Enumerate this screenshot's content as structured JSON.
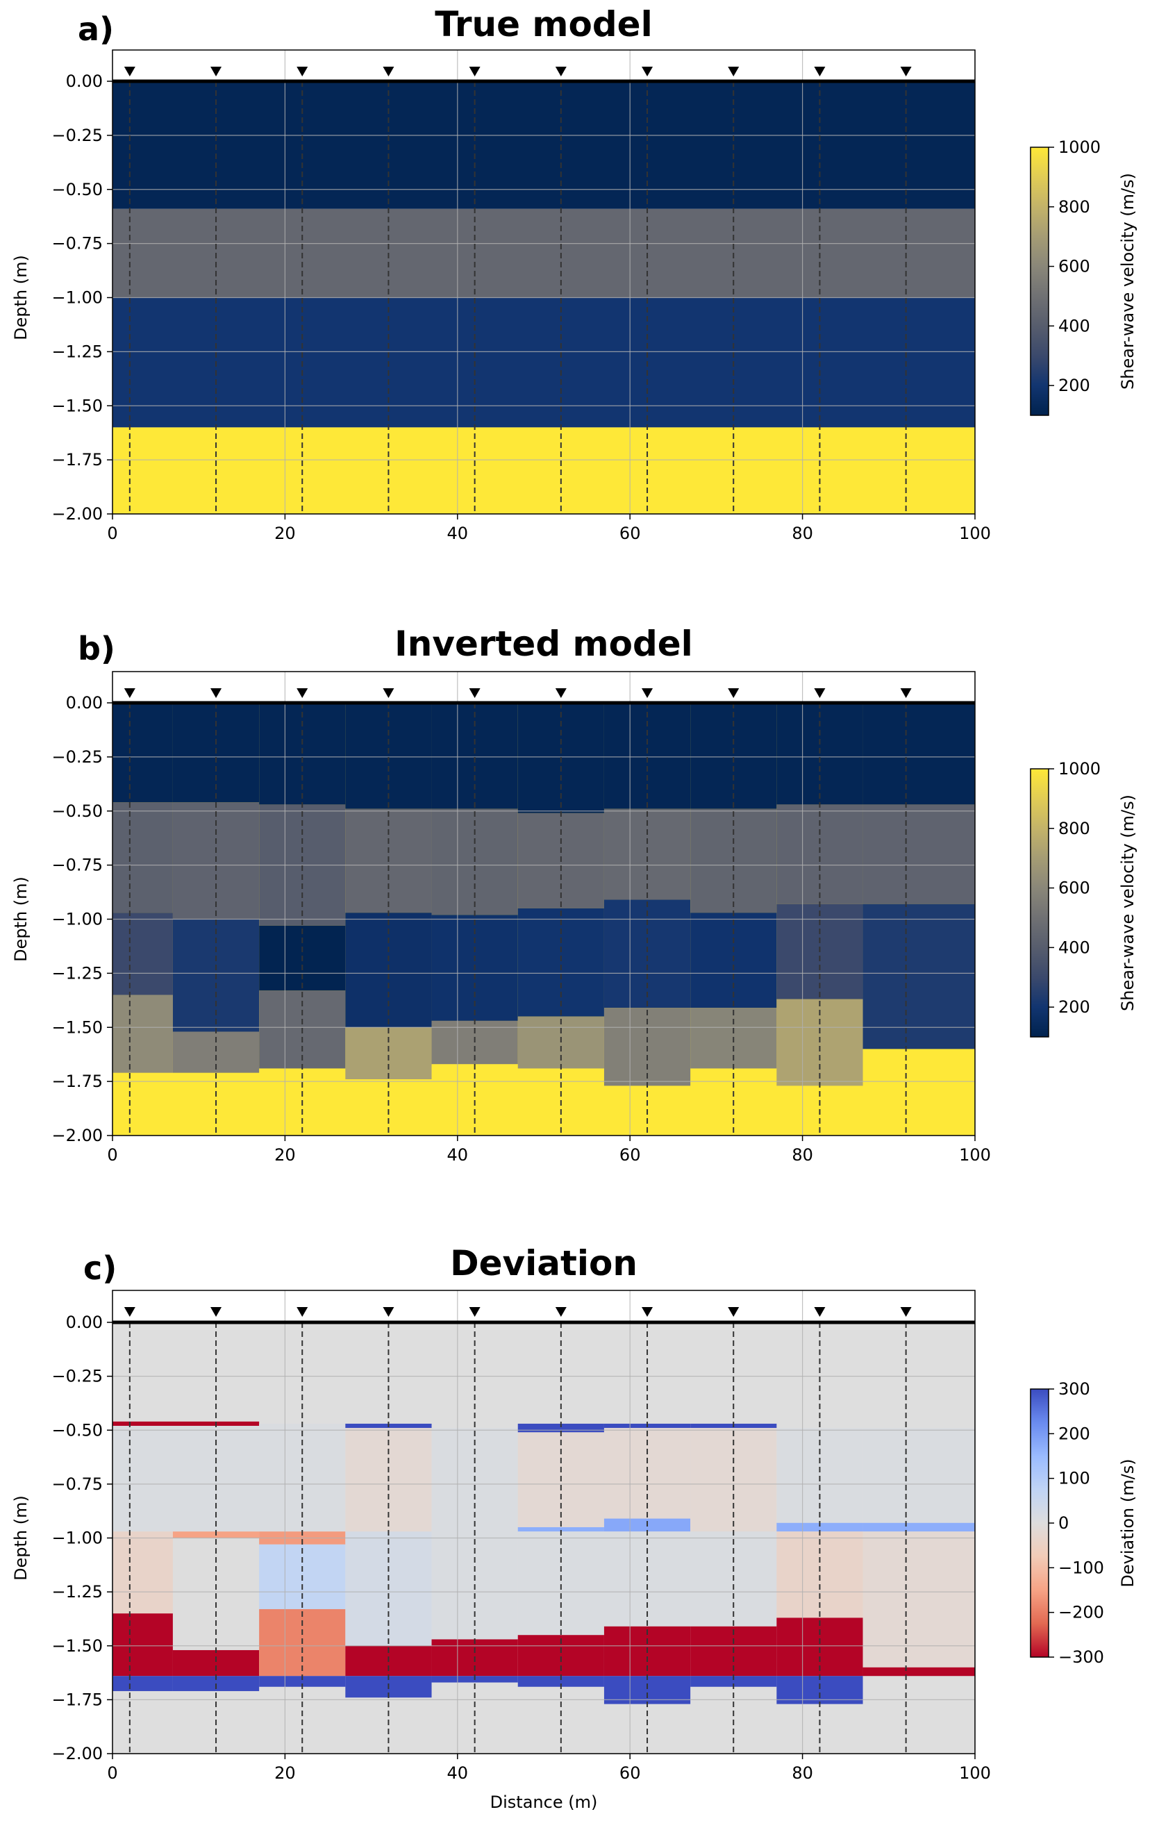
{
  "colors": {
    "velocity_ramp": [
      "#00224e",
      "#123570",
      "#3b496c",
      "#575d6d",
      "#707173",
      "#8a8779",
      "#a59c74",
      "#c3b369",
      "#e1cc55",
      "#fee838"
    ],
    "deviation_ramp": [
      "#b40426",
      "#e26952",
      "#f6a385",
      "#f2cbb7",
      "#dddddd",
      "#c0d4f5",
      "#9abbff",
      "#6a8bef",
      "#3b4cc0"
    ],
    "nan_fill": "#dedede"
  },
  "chart_data": [
    {
      "panel": "a)",
      "type": "heatmap",
      "title": "True model",
      "xlabel": "",
      "ylabel": "Depth (m)",
      "xlim": [
        0,
        100
      ],
      "ylim": [
        -2.0,
        0.0
      ],
      "xticks": [
        "0",
        "20",
        "40",
        "60",
        "80",
        "100"
      ],
      "yticks": [
        "0.00",
        "−0.25",
        "−0.50",
        "−0.75",
        "−1.00",
        "−1.25",
        "−1.50",
        "−1.75",
        "−2.00"
      ],
      "grid": true,
      "colorbar": {
        "label": "Shear-wave velocity (m/s)",
        "min": 100,
        "max": 1000,
        "ticks": [
          "200",
          "400",
          "600",
          "800",
          "1000"
        ],
        "colormap": "cividis"
      },
      "receivers_x": [
        2,
        12,
        22,
        32,
        42,
        52,
        62,
        72,
        82,
        92
      ],
      "cells": [
        {
          "x0": 0,
          "x1": 100,
          "top": 0.0,
          "bottom": -0.59,
          "value": 120
        },
        {
          "x0": 0,
          "x1": 100,
          "top": -0.59,
          "bottom": -1.0,
          "value": 450
        },
        {
          "x0": 0,
          "x1": 100,
          "top": -1.0,
          "bottom": -1.6,
          "value": 200
        },
        {
          "x0": 0,
          "x1": 100,
          "top": -1.6,
          "bottom": -2.0,
          "value": 1000
        }
      ]
    },
    {
      "panel": "b)",
      "type": "heatmap",
      "title": "Inverted model",
      "xlabel": "",
      "ylabel": "Depth (m)",
      "xlim": [
        0,
        100
      ],
      "ylim": [
        -2.0,
        0.0
      ],
      "xticks": [
        "0",
        "20",
        "40",
        "60",
        "80",
        "100"
      ],
      "yticks": [
        "0.00",
        "−0.25",
        "−0.50",
        "−0.75",
        "−1.00",
        "−1.25",
        "−1.50",
        "−1.75",
        "−2.00"
      ],
      "grid": true,
      "colorbar": {
        "label": "Shear-wave velocity (m/s)",
        "min": 100,
        "max": 1000,
        "ticks": [
          "200",
          "400",
          "600",
          "800",
          "1000"
        ],
        "colormap": "cividis"
      },
      "receivers_x": [
        2,
        12,
        22,
        32,
        42,
        52,
        62,
        72,
        82,
        92
      ],
      "cells": [
        {
          "x0": 0,
          "x1": 100,
          "top": 0.0,
          "bottom": -2.0,
          "value": 1000
        },
        {
          "x0": 0,
          "x1": 7,
          "top": 0.0,
          "bottom": -0.46,
          "value": 120
        },
        {
          "x0": 0,
          "x1": 7,
          "top": -0.46,
          "bottom": -0.97,
          "value": 420
        },
        {
          "x0": 0,
          "x1": 7,
          "top": -0.97,
          "bottom": -1.35,
          "value": 300
        },
        {
          "x0": 0,
          "x1": 7,
          "top": -1.35,
          "bottom": -1.71,
          "value": 620
        },
        {
          "x0": 7,
          "x1": 17,
          "top": 0.0,
          "bottom": -0.46,
          "value": 120
        },
        {
          "x0": 7,
          "x1": 17,
          "top": -0.46,
          "bottom": -1.0,
          "value": 430
        },
        {
          "x0": 7,
          "x1": 17,
          "top": -1.0,
          "bottom": -1.52,
          "value": 220
        },
        {
          "x0": 7,
          "x1": 17,
          "top": -1.52,
          "bottom": -1.71,
          "value": 560
        },
        {
          "x0": 17,
          "x1": 27,
          "top": 0.0,
          "bottom": -0.47,
          "value": 120
        },
        {
          "x0": 17,
          "x1": 27,
          "top": -0.47,
          "bottom": -1.03,
          "value": 400
        },
        {
          "x0": 17,
          "x1": 27,
          "top": -1.03,
          "bottom": -1.33,
          "value": 110
        },
        {
          "x0": 17,
          "x1": 27,
          "top": -1.33,
          "bottom": -1.69,
          "value": 460
        },
        {
          "x0": 27,
          "x1": 37,
          "top": 0.0,
          "bottom": -0.49,
          "value": 120
        },
        {
          "x0": 27,
          "x1": 37,
          "top": -0.49,
          "bottom": -0.97,
          "value": 450
        },
        {
          "x0": 27,
          "x1": 37,
          "top": -0.97,
          "bottom": -1.5,
          "value": 175
        },
        {
          "x0": 27,
          "x1": 37,
          "top": -1.5,
          "bottom": -1.74,
          "value": 720
        },
        {
          "x0": 37,
          "x1": 47,
          "top": 0.0,
          "bottom": -0.49,
          "value": 120
        },
        {
          "x0": 37,
          "x1": 47,
          "top": -0.49,
          "bottom": -0.98,
          "value": 440
        },
        {
          "x0": 37,
          "x1": 47,
          "top": -0.98,
          "bottom": -1.47,
          "value": 185
        },
        {
          "x0": 37,
          "x1": 47,
          "top": -1.47,
          "bottom": -1.67,
          "value": 560
        },
        {
          "x0": 47,
          "x1": 57,
          "top": 0.0,
          "bottom": -0.51,
          "value": 120
        },
        {
          "x0": 47,
          "x1": 57,
          "top": -0.51,
          "bottom": -0.95,
          "value": 450
        },
        {
          "x0": 47,
          "x1": 57,
          "top": -0.95,
          "bottom": -1.45,
          "value": 195
        },
        {
          "x0": 47,
          "x1": 57,
          "top": -1.45,
          "bottom": -1.69,
          "value": 660
        },
        {
          "x0": 57,
          "x1": 67,
          "top": 0.0,
          "bottom": -0.49,
          "value": 120
        },
        {
          "x0": 57,
          "x1": 67,
          "top": -0.49,
          "bottom": -0.91,
          "value": 460
        },
        {
          "x0": 57,
          "x1": 67,
          "top": -0.91,
          "bottom": -1.41,
          "value": 210
        },
        {
          "x0": 57,
          "x1": 67,
          "top": -1.41,
          "bottom": -1.77,
          "value": 570
        },
        {
          "x0": 67,
          "x1": 77,
          "top": 0.0,
          "bottom": -0.49,
          "value": 120
        },
        {
          "x0": 67,
          "x1": 77,
          "top": -0.49,
          "bottom": -0.97,
          "value": 440
        },
        {
          "x0": 67,
          "x1": 77,
          "top": -0.97,
          "bottom": -1.41,
          "value": 190
        },
        {
          "x0": 67,
          "x1": 77,
          "top": -1.41,
          "bottom": -1.69,
          "value": 590
        },
        {
          "x0": 77,
          "x1": 87,
          "top": 0.0,
          "bottom": -0.47,
          "value": 120
        },
        {
          "x0": 77,
          "x1": 87,
          "top": -0.47,
          "bottom": -0.93,
          "value": 430
        },
        {
          "x0": 77,
          "x1": 87,
          "top": -0.93,
          "bottom": -1.37,
          "value": 300
        },
        {
          "x0": 77,
          "x1": 87,
          "top": -1.37,
          "bottom": -1.77,
          "value": 730
        },
        {
          "x0": 87,
          "x1": 100,
          "top": 0.0,
          "bottom": -0.47,
          "value": 120
        },
        {
          "x0": 87,
          "x1": 100,
          "top": -0.47,
          "bottom": -0.93,
          "value": 430
        },
        {
          "x0": 87,
          "x1": 100,
          "top": -0.93,
          "bottom": -1.6,
          "value": 230
        }
      ]
    },
    {
      "panel": "c)",
      "type": "heatmap",
      "title": "Deviation",
      "xlabel": "Distance (m)",
      "ylabel": "Depth (m)",
      "xlim": [
        0,
        100
      ],
      "ylim": [
        -2.0,
        0.0
      ],
      "xticks": [
        "0",
        "20",
        "40",
        "60",
        "80",
        "100"
      ],
      "yticks": [
        "0.00",
        "−0.25",
        "−0.50",
        "−0.75",
        "−1.00",
        "−1.25",
        "−1.50",
        "−1.75",
        "−2.00"
      ],
      "grid": true,
      "colorbar": {
        "label": "Deviation (m/s)",
        "min": -300,
        "max": 300,
        "ticks": [
          "−300",
          "−200",
          "−100",
          "0",
          "100",
          "200",
          "300"
        ],
        "colormap": "coolwarm_r"
      },
      "receivers_x": [
        2,
        12,
        22,
        32,
        42,
        52,
        62,
        72,
        82,
        92
      ],
      "cells": [
        {
          "x0": 0,
          "x1": 100,
          "top": 0.0,
          "bottom": -2.0,
          "value": null
        },
        {
          "x0": 0,
          "x1": 17,
          "top": -0.46,
          "bottom": -0.48,
          "value": -300
        },
        {
          "x0": 0,
          "x1": 7,
          "top": -0.48,
          "bottom": -0.97,
          "value": 10
        },
        {
          "x0": 0,
          "x1": 7,
          "top": -0.97,
          "bottom": -1.35,
          "value": -40
        },
        {
          "x0": 0,
          "x1": 7,
          "top": -1.35,
          "bottom": -1.64,
          "value": -300
        },
        {
          "x0": 0,
          "x1": 7,
          "top": -1.64,
          "bottom": -1.71,
          "value": 300
        },
        {
          "x0": 7,
          "x1": 17,
          "top": -0.48,
          "bottom": -1.0,
          "value": 10
        },
        {
          "x0": 7,
          "x1": 17,
          "top": -0.97,
          "bottom": -1.0,
          "value": -150
        },
        {
          "x0": 7,
          "x1": 17,
          "top": -1.0,
          "bottom": -1.52,
          "value": 0
        },
        {
          "x0": 7,
          "x1": 17,
          "top": -1.52,
          "bottom": -1.64,
          "value": -300
        },
        {
          "x0": 7,
          "x1": 17,
          "top": -1.64,
          "bottom": -1.71,
          "value": 300
        },
        {
          "x0": 17,
          "x1": 27,
          "top": -0.47,
          "bottom": -0.97,
          "value": 10
        },
        {
          "x0": 17,
          "x1": 27,
          "top": -0.97,
          "bottom": -1.03,
          "value": -160
        },
        {
          "x0": 17,
          "x1": 27,
          "top": -1.03,
          "bottom": -1.33,
          "value": 70
        },
        {
          "x0": 17,
          "x1": 27,
          "top": -1.33,
          "bottom": -1.64,
          "value": -190
        },
        {
          "x0": 17,
          "x1": 27,
          "top": -1.64,
          "bottom": -1.69,
          "value": 300
        },
        {
          "x0": 27,
          "x1": 37,
          "top": -0.47,
          "bottom": -0.49,
          "value": 300
        },
        {
          "x0": 27,
          "x1": 37,
          "top": -0.49,
          "bottom": -0.97,
          "value": -20
        },
        {
          "x0": 27,
          "x1": 37,
          "top": -0.97,
          "bottom": -1.5,
          "value": 25
        },
        {
          "x0": 27,
          "x1": 37,
          "top": -1.5,
          "bottom": -1.64,
          "value": -300
        },
        {
          "x0": 27,
          "x1": 37,
          "top": -1.64,
          "bottom": -1.74,
          "value": 300
        },
        {
          "x0": 37,
          "x1": 47,
          "top": -0.49,
          "bottom": -1.47,
          "value": 10
        },
        {
          "x0": 37,
          "x1": 47,
          "top": -1.47,
          "bottom": -1.64,
          "value": -300
        },
        {
          "x0": 37,
          "x1": 47,
          "top": -1.64,
          "bottom": -1.67,
          "value": 300
        },
        {
          "x0": 47,
          "x1": 57,
          "top": -0.47,
          "bottom": -0.51,
          "value": 300
        },
        {
          "x0": 47,
          "x1": 57,
          "top": -0.51,
          "bottom": -0.95,
          "value": -20
        },
        {
          "x0": 47,
          "x1": 57,
          "top": -0.95,
          "bottom": -0.97,
          "value": 170
        },
        {
          "x0": 47,
          "x1": 57,
          "top": -0.97,
          "bottom": -1.45,
          "value": 10
        },
        {
          "x0": 47,
          "x1": 57,
          "top": -1.45,
          "bottom": -1.64,
          "value": -300
        },
        {
          "x0": 47,
          "x1": 57,
          "top": -1.64,
          "bottom": -1.69,
          "value": 300
        },
        {
          "x0": 57,
          "x1": 67,
          "top": -0.47,
          "bottom": -0.49,
          "value": 300
        },
        {
          "x0": 57,
          "x1": 67,
          "top": -0.49,
          "bottom": -0.91,
          "value": -20
        },
        {
          "x0": 57,
          "x1": 67,
          "top": -0.91,
          "bottom": -0.97,
          "value": 180
        },
        {
          "x0": 57,
          "x1": 67,
          "top": -0.97,
          "bottom": -1.41,
          "value": 10
        },
        {
          "x0": 57,
          "x1": 67,
          "top": -1.41,
          "bottom": -1.64,
          "value": -300
        },
        {
          "x0": 57,
          "x1": 67,
          "top": -1.64,
          "bottom": -1.77,
          "value": 300
        },
        {
          "x0": 67,
          "x1": 77,
          "top": -0.47,
          "bottom": -0.49,
          "value": 300
        },
        {
          "x0": 67,
          "x1": 77,
          "top": -0.49,
          "bottom": -0.97,
          "value": -20
        },
        {
          "x0": 67,
          "x1": 77,
          "top": -0.97,
          "bottom": -1.41,
          "value": 10
        },
        {
          "x0": 67,
          "x1": 77,
          "top": -1.41,
          "bottom": -1.64,
          "value": -300
        },
        {
          "x0": 67,
          "x1": 77,
          "top": -1.64,
          "bottom": -1.69,
          "value": 300
        },
        {
          "x0": 77,
          "x1": 87,
          "top": -0.49,
          "bottom": -0.93,
          "value": 10
        },
        {
          "x0": 77,
          "x1": 87,
          "top": -0.93,
          "bottom": -0.97,
          "value": 170
        },
        {
          "x0": 77,
          "x1": 87,
          "top": -0.97,
          "bottom": -1.37,
          "value": -40
        },
        {
          "x0": 77,
          "x1": 87,
          "top": -1.37,
          "bottom": -1.64,
          "value": -300
        },
        {
          "x0": 77,
          "x1": 87,
          "top": -1.64,
          "bottom": -1.77,
          "value": 300
        },
        {
          "x0": 87,
          "x1": 100,
          "top": -0.49,
          "bottom": -0.93,
          "value": 10
        },
        {
          "x0": 87,
          "x1": 100,
          "top": -0.93,
          "bottom": -0.97,
          "value": 170
        },
        {
          "x0": 87,
          "x1": 100,
          "top": -0.97,
          "bottom": -1.6,
          "value": -20
        },
        {
          "x0": 87,
          "x1": 100,
          "top": -1.6,
          "bottom": -1.64,
          "value": -300
        }
      ]
    }
  ]
}
